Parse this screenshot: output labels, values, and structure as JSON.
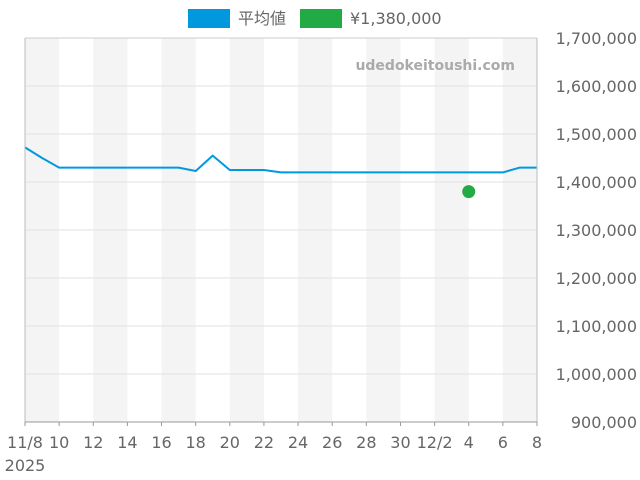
{
  "chart_data": {
    "type": "line",
    "watermark": "udedokeitoushi.com",
    "legend_position": "top",
    "grid": true,
    "x_tick_labels": [
      "11/8",
      "10",
      "12",
      "14",
      "16",
      "18",
      "20",
      "22",
      "24",
      "26",
      "28",
      "30",
      "12/2",
      "4",
      "6",
      "8"
    ],
    "x_year_label": "2025",
    "y_tick_labels": [
      "1,700,000",
      "1,600,000",
      "1,500,000",
      "1,400,000",
      "1,300,000",
      "1,200,000",
      "1,100,000",
      "1,000,000",
      "900,000"
    ],
    "ylim": [
      900000,
      1700000
    ],
    "x_range": [
      "2025-11-08",
      "2025-12-08"
    ],
    "series": [
      {
        "name": "平均値",
        "color": "#0099dd",
        "kind": "line",
        "points": [
          [
            "2025-11-08",
            1472000
          ],
          [
            "2025-11-09",
            1450000
          ],
          [
            "2025-11-10",
            1430000
          ],
          [
            "2025-11-11",
            1430000
          ],
          [
            "2025-11-12",
            1430000
          ],
          [
            "2025-11-13",
            1430000
          ],
          [
            "2025-11-14",
            1430000
          ],
          [
            "2025-11-15",
            1430000
          ],
          [
            "2025-11-16",
            1430000
          ],
          [
            "2025-11-17",
            1430000
          ],
          [
            "2025-11-18",
            1423000
          ],
          [
            "2025-11-19",
            1455000
          ],
          [
            "2025-11-20",
            1425000
          ],
          [
            "2025-11-21",
            1425000
          ],
          [
            "2025-11-22",
            1425000
          ],
          [
            "2025-11-23",
            1420000
          ],
          [
            "2025-11-24",
            1420000
          ],
          [
            "2025-11-25",
            1420000
          ],
          [
            "2025-11-26",
            1420000
          ],
          [
            "2025-11-27",
            1420000
          ],
          [
            "2025-11-28",
            1420000
          ],
          [
            "2025-11-29",
            1420000
          ],
          [
            "2025-11-30",
            1420000
          ],
          [
            "2025-12-01",
            1420000
          ],
          [
            "2025-12-02",
            1420000
          ],
          [
            "2025-12-03",
            1420000
          ],
          [
            "2025-12-04",
            1420000
          ],
          [
            "2025-12-05",
            1420000
          ],
          [
            "2025-12-06",
            1420000
          ],
          [
            "2025-12-07",
            1430000
          ],
          [
            "2025-12-08",
            1430000
          ]
        ]
      },
      {
        "name": "¥1,380,000",
        "color": "#22aa44",
        "kind": "point",
        "points": [
          [
            "2025-12-04",
            1380000
          ]
        ]
      }
    ]
  }
}
